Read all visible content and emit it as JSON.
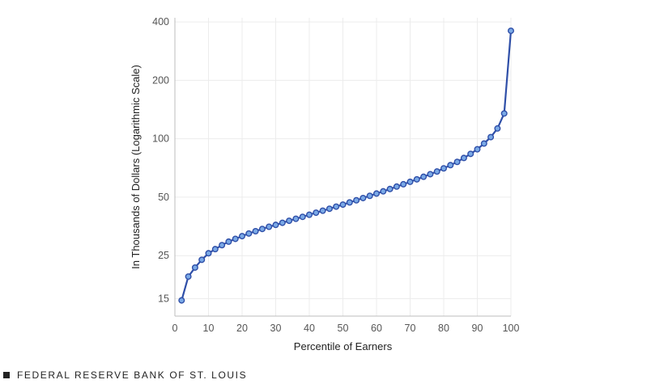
{
  "chart_data": {
    "type": "line",
    "title": "",
    "xlabel": "Percentile of Earners",
    "ylabel": "In Thousands of Dollars (Logarithmic Scale)",
    "y_scale": "log",
    "xlim": [
      0,
      100
    ],
    "ylim": [
      12.2,
      420
    ],
    "x_ticks": [
      0,
      10,
      20,
      30,
      40,
      50,
      60,
      70,
      80,
      90,
      100
    ],
    "y_ticks": [
      15,
      25,
      50,
      100,
      200,
      400
    ],
    "grid": true,
    "legend": "none",
    "series_color": "#2f4fa8",
    "marker_fill": "#7aa9e6",
    "x": [
      2,
      4,
      6,
      8,
      10,
      12,
      14,
      16,
      18,
      20,
      22,
      24,
      26,
      28,
      30,
      32,
      34,
      36,
      38,
      40,
      42,
      44,
      46,
      48,
      50,
      52,
      54,
      56,
      58,
      60,
      62,
      64,
      66,
      68,
      70,
      72,
      74,
      76,
      78,
      80,
      82,
      84,
      86,
      88,
      90,
      92,
      94,
      96,
      98,
      100
    ],
    "y": [
      14.7,
      19.5,
      21.7,
      23.8,
      25.7,
      27.0,
      28.3,
      29.5,
      30.5,
      31.5,
      32.5,
      33.4,
      34.3,
      35.2,
      36.0,
      36.9,
      37.8,
      38.7,
      39.6,
      40.6,
      41.6,
      42.6,
      43.6,
      44.7,
      45.8,
      47.0,
      48.2,
      49.5,
      50.8,
      52.2,
      53.6,
      55.1,
      56.7,
      58.3,
      60.0,
      61.8,
      63.7,
      65.7,
      67.8,
      70.4,
      73.1,
      76.0,
      79.6,
      83.6,
      88.3,
      94.5,
      102,
      113,
      135,
      360
    ]
  },
  "footer": {
    "source": "FEDERAL RESERVE BANK OF ST. LOUIS"
  }
}
